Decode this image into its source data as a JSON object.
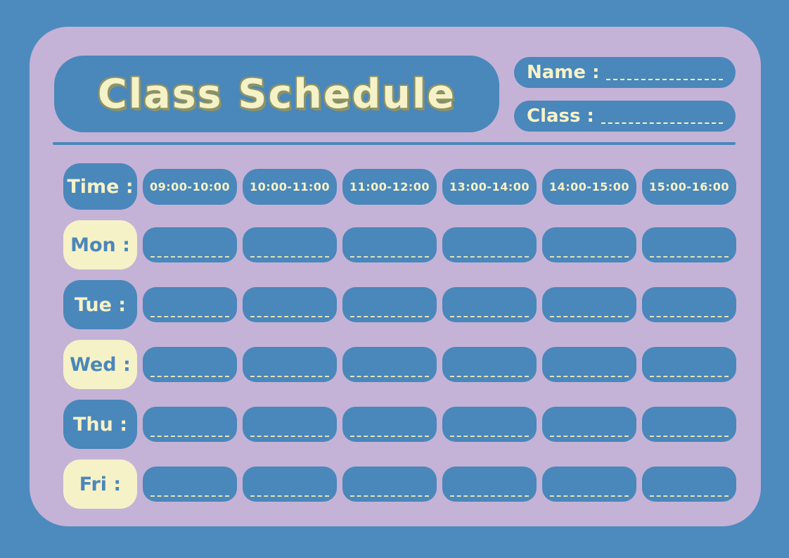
{
  "header": {
    "title": "Class Schedule",
    "name_label": "Name :",
    "class_label": "Class :"
  },
  "schedule": {
    "time_header": "Time :",
    "time_slots": [
      "09:00-10:00",
      "10:00-11:00",
      "11:00-12:00",
      "13:00-14:00",
      "14:00-15:00",
      "15:00-16:00"
    ],
    "days": [
      "Mon :",
      "Tue :",
      "Wed :",
      "Thu :",
      "Fri :"
    ]
  },
  "colors": {
    "background_blue": "#4d8bbe",
    "card_lavender": "#c4b3d7",
    "pill_blue": "#4a87ba",
    "cream": "#f6f2c8",
    "dash_line": "#dfe3bc",
    "title_outline_olive": "#8d9367"
  }
}
